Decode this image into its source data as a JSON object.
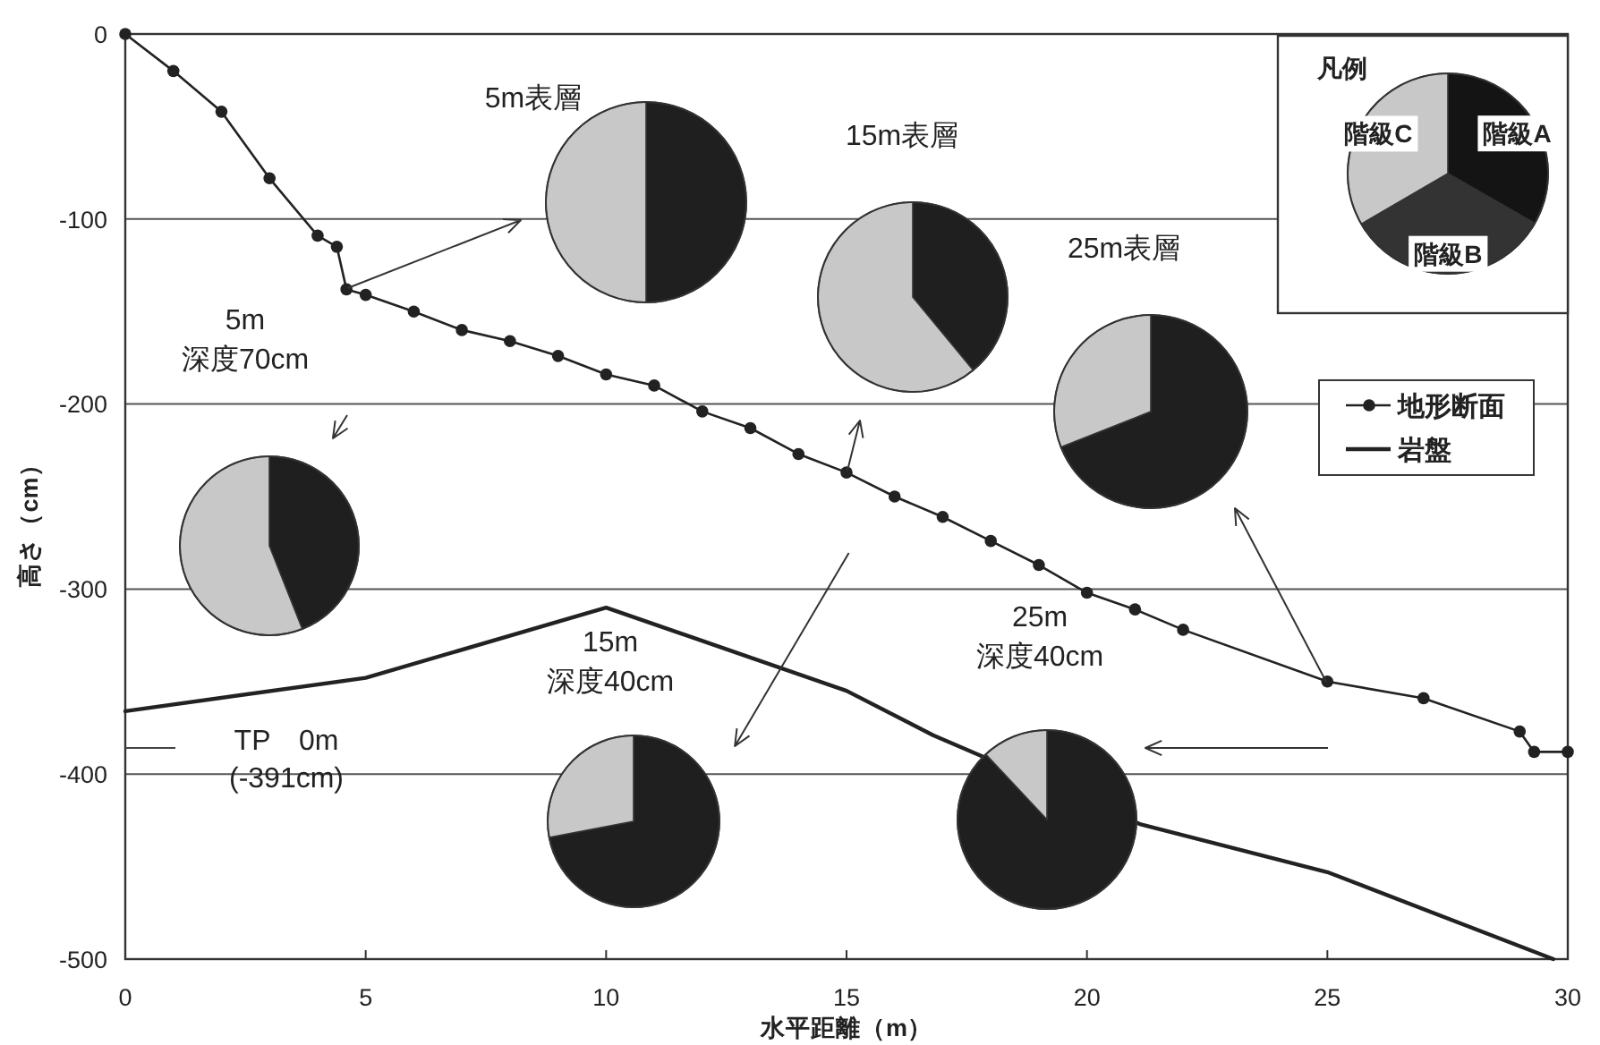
{
  "chart_data": [
    {
      "type": "line",
      "xlabel": "水平距離（m）",
      "ylabel": "高さ（cm）",
      "xlim": [
        0,
        30
      ],
      "ylim": [
        -500,
        0
      ],
      "xticks": [
        0,
        5,
        10,
        15,
        20,
        25,
        30
      ],
      "yticks": [
        0,
        -100,
        -200,
        -300,
        -400,
        -500
      ],
      "grid": "y",
      "legend": "right",
      "series": [
        {
          "name": "地形断面",
          "color": "#222222",
          "marker": "circle",
          "x": [
            0,
            1,
            2,
            3,
            4,
            4.4,
            4.6,
            5,
            6,
            7,
            8,
            9,
            10,
            11,
            12,
            13,
            14,
            15,
            16,
            17,
            18,
            19,
            20,
            21,
            22,
            25,
            27,
            29,
            29.3,
            30
          ],
          "values": [
            0,
            -20,
            -42,
            -78,
            -109,
            -115,
            -138,
            -141,
            -150,
            -160,
            -166,
            -174,
            -184,
            -190,
            -204,
            -213,
            -227,
            -237,
            -250,
            -261,
            -274,
            -287,
            -302,
            -311,
            -322,
            -350,
            -359,
            -377,
            -388,
            -388
          ]
        },
        {
          "name": "岩盤",
          "color": "#222222",
          "marker": "none",
          "x": [
            0,
            5,
            10,
            15,
            16.8,
            21.1,
            25,
            29.7
          ],
          "values": [
            -366,
            -348,
            -310,
            -355,
            -379,
            -427,
            -453,
            -500
          ]
        }
      ],
      "annotations": [
        "TP　0m\n(-391cm)"
      ]
    },
    {
      "type": "pie",
      "title": "凡例",
      "categories": [
        "階級A",
        "階級B",
        "階級C"
      ],
      "values": [
        33.3,
        33.3,
        33.4
      ],
      "colors": [
        "#141414",
        "#333333",
        "#c8c8c8"
      ]
    },
    {
      "type": "pie",
      "title": "5m表層",
      "categories": [
        null,
        null
      ],
      "values": [
        50,
        50
      ],
      "colors": [
        "#1f1f1f",
        "#c8c8c8"
      ]
    },
    {
      "type": "pie",
      "title": "15m表層",
      "categories": [
        null,
        null
      ],
      "values": [
        39,
        61
      ],
      "colors": [
        "#1f1f1f",
        "#c8c8c8"
      ]
    },
    {
      "type": "pie",
      "title": "25m表層",
      "categories": [
        null,
        null
      ],
      "values": [
        69,
        31
      ],
      "colors": [
        "#1f1f1f",
        "#c8c8c8"
      ]
    },
    {
      "type": "pie",
      "title": "5m\n深度70cm",
      "categories": [
        null,
        null
      ],
      "values": [
        44,
        56
      ],
      "colors": [
        "#1f1f1f",
        "#c8c8c8"
      ]
    },
    {
      "type": "pie",
      "title": "15m\n深度40cm",
      "categories": [
        null,
        null
      ],
      "values": [
        72,
        28
      ],
      "colors": [
        "#1f1f1f",
        "#c8c8c8"
      ]
    },
    {
      "type": "pie",
      "title": "25m\n深度40cm",
      "categories": [
        null,
        null
      ],
      "values": [
        88,
        12
      ],
      "colors": [
        "#1f1f1f",
        "#c8c8c8"
      ]
    }
  ]
}
